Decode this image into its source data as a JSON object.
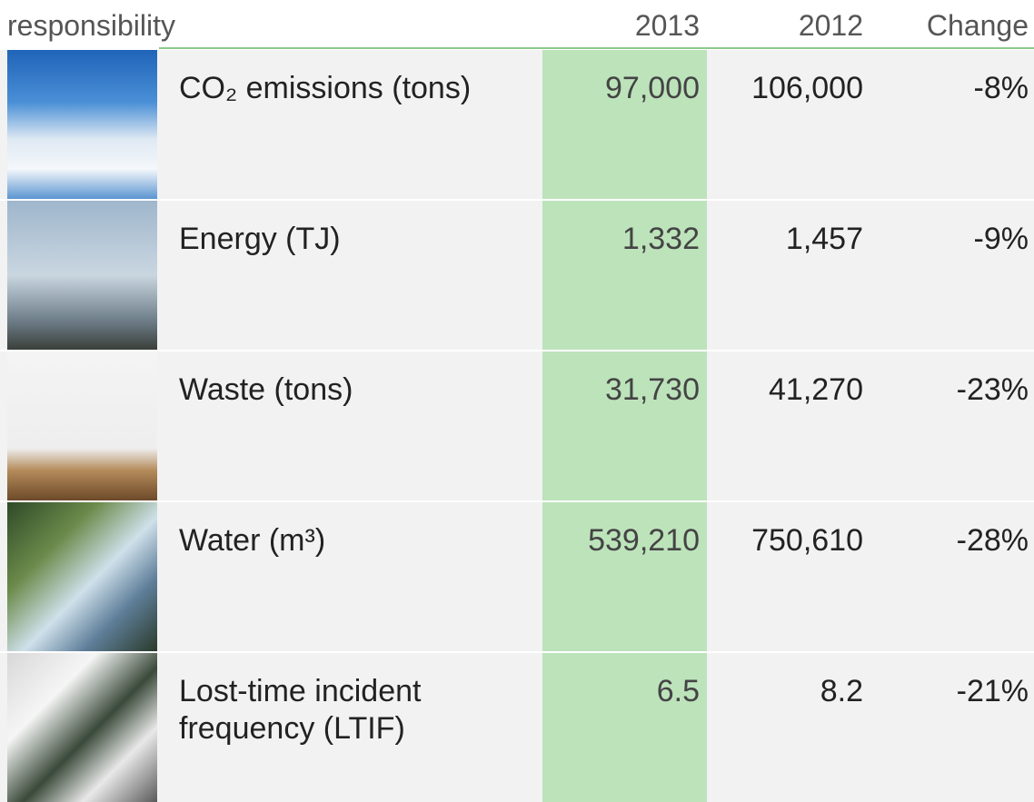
{
  "header": {
    "title": "responsibility",
    "columns": [
      "2013",
      "2012",
      "Change"
    ]
  },
  "table": {
    "rows": [
      [
        "CO₂ emissions (tons)",
        "97,000",
        "106,000",
        "-8%"
      ],
      [
        "Energy (TJ)",
        "1,332",
        "1,457",
        "-9%"
      ],
      [
        "Waste (tons)",
        "31,730",
        "41,270",
        "-23%"
      ],
      [
        "Water (m³)",
        "539,210",
        "750,610",
        "-28%"
      ],
      [
        "Lost-time incident frequency (LTIF)",
        "6.5",
        "8.2",
        "-21%"
      ]
    ]
  }
}
